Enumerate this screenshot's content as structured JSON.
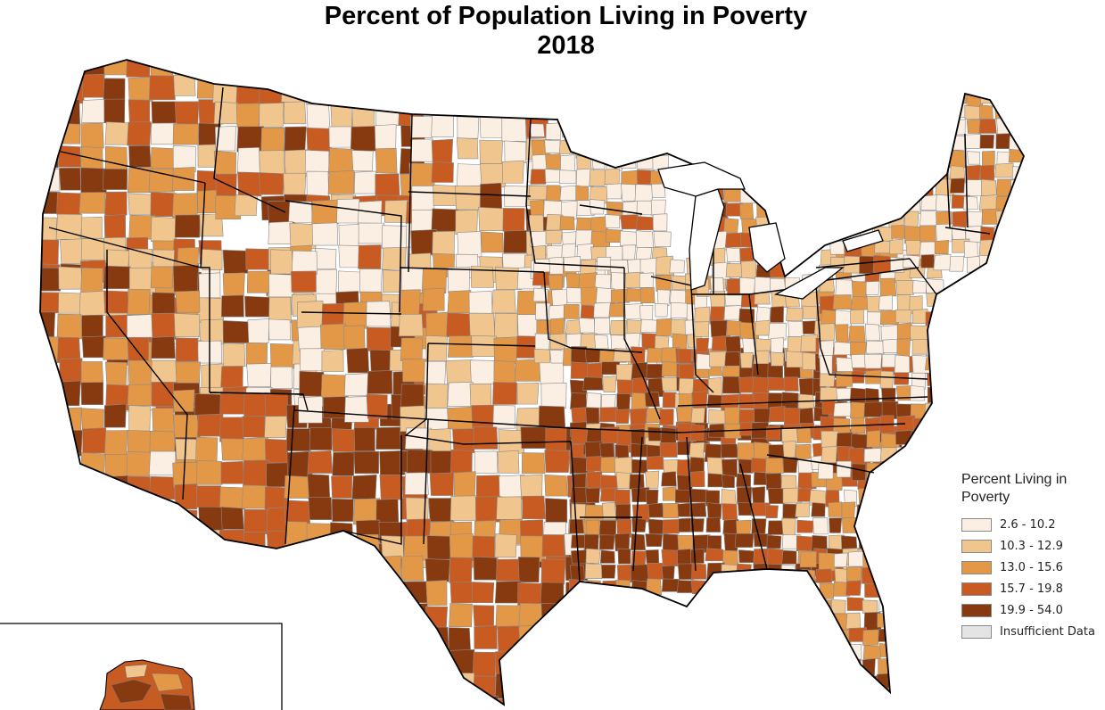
{
  "title": {
    "line1": "Percent of Population Living in Poverty",
    "line2": "2018"
  },
  "legend": {
    "title": "Percent Living in Poverty",
    "items": [
      {
        "label": "2.6 - 10.2",
        "color": "#fbeee2"
      },
      {
        "label": "10.3 - 12.9",
        "color": "#f0c58e"
      },
      {
        "label": "13.0 - 15.6",
        "color": "#e39848"
      },
      {
        "label": "15.7 - 19.8",
        "color": "#c85b22"
      },
      {
        "label": "19.9 - 54.0",
        "color": "#87390f"
      },
      {
        "label": "Insufficient Data",
        "color": "#e4e4e4"
      }
    ]
  },
  "colors": {
    "state_border": "#000000",
    "county_border": "#8a8a8a",
    "background": "#ffffff"
  }
}
